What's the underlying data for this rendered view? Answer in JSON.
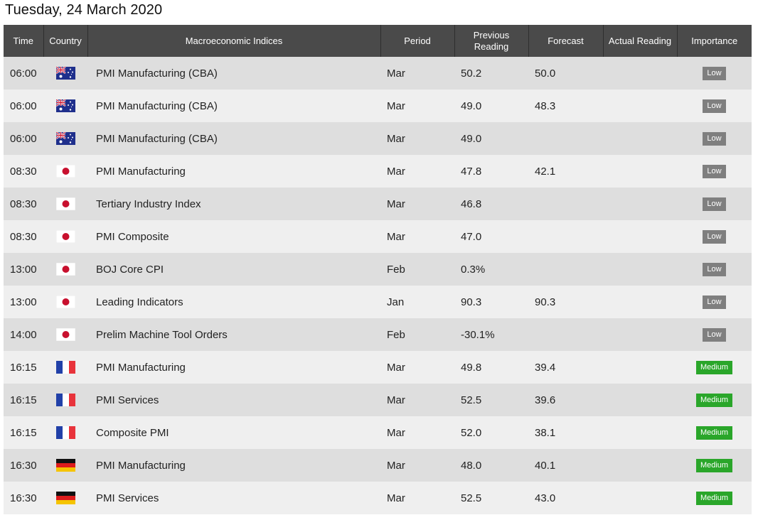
{
  "title": "Tuesday, 24 March 2020",
  "headers": {
    "time": "Time",
    "country": "Country",
    "indicator": "Macroeconomic Indices",
    "period": "Period",
    "previous": "Previous Reading",
    "forecast": "Forecast",
    "actual": "Actual Reading",
    "importance": "Importance"
  },
  "colors": {
    "header_bg": "#4a4a4a",
    "row_odd": "#dedede",
    "row_even": "#efefef",
    "low_badge": "#7f7f7f",
    "medium_badge": "#2aa62a"
  },
  "rows": [
    {
      "time": "06:00",
      "country_flag": "australia-flag-icon",
      "indicator": "PMI Manufacturing (CBA)",
      "period": "Mar",
      "previous": "50.2",
      "forecast": "50.0",
      "actual": "",
      "importance": "Low"
    },
    {
      "time": "06:00",
      "country_flag": "australia-flag-icon",
      "indicator": "PMI Manufacturing (CBA)",
      "period": "Mar",
      "previous": "49.0",
      "forecast": "48.3",
      "actual": "",
      "importance": "Low"
    },
    {
      "time": "06:00",
      "country_flag": "australia-flag-icon",
      "indicator": "PMI Manufacturing (CBA)",
      "period": "Mar",
      "previous": "49.0",
      "forecast": "",
      "actual": "",
      "importance": "Low"
    },
    {
      "time": "08:30",
      "country_flag": "japan-flag-icon",
      "indicator": "PMI Manufacturing",
      "period": "Mar",
      "previous": "47.8",
      "forecast": "42.1",
      "actual": "",
      "importance": "Low"
    },
    {
      "time": "08:30",
      "country_flag": "japan-flag-icon",
      "indicator": "Tertiary Industry Index",
      "period": "Mar",
      "previous": "46.8",
      "forecast": "",
      "actual": "",
      "importance": "Low"
    },
    {
      "time": "08:30",
      "country_flag": "japan-flag-icon",
      "indicator": "PMI Composite",
      "period": "Mar",
      "previous": "47.0",
      "forecast": "",
      "actual": "",
      "importance": "Low"
    },
    {
      "time": "13:00",
      "country_flag": "japan-flag-icon",
      "indicator": "BOJ Core CPI",
      "period": "Feb",
      "previous": "0.3%",
      "forecast": "",
      "actual": "",
      "importance": "Low"
    },
    {
      "time": "13:00",
      "country_flag": "japan-flag-icon",
      "indicator": "Leading Indicators",
      "period": "Jan",
      "previous": "90.3",
      "forecast": "90.3",
      "actual": "",
      "importance": "Low"
    },
    {
      "time": "14:00",
      "country_flag": "japan-flag-icon",
      "indicator": "Prelim Machine Tool Orders",
      "period": "Feb",
      "previous": "-30.1%",
      "forecast": "",
      "actual": "",
      "importance": "Low"
    },
    {
      "time": "16:15",
      "country_flag": "france-flag-icon",
      "indicator": "PMI Manufacturing",
      "period": "Mar",
      "previous": "49.8",
      "forecast": "39.4",
      "actual": "",
      "importance": "Medium"
    },
    {
      "time": "16:15",
      "country_flag": "france-flag-icon",
      "indicator": "PMI Services",
      "period": "Mar",
      "previous": "52.5",
      "forecast": "39.6",
      "actual": "",
      "importance": "Medium"
    },
    {
      "time": "16:15",
      "country_flag": "france-flag-icon",
      "indicator": "Composite PMI",
      "period": "Mar",
      "previous": "52.0",
      "forecast": "38.1",
      "actual": "",
      "importance": "Medium"
    },
    {
      "time": "16:30",
      "country_flag": "germany-flag-icon",
      "indicator": "PMI Manufacturing",
      "period": "Mar",
      "previous": "48.0",
      "forecast": "40.1",
      "actual": "",
      "importance": "Medium"
    },
    {
      "time": "16:30",
      "country_flag": "germany-flag-icon",
      "indicator": "PMI Services",
      "period": "Mar",
      "previous": "52.5",
      "forecast": "43.0",
      "actual": "",
      "importance": "Medium"
    }
  ]
}
